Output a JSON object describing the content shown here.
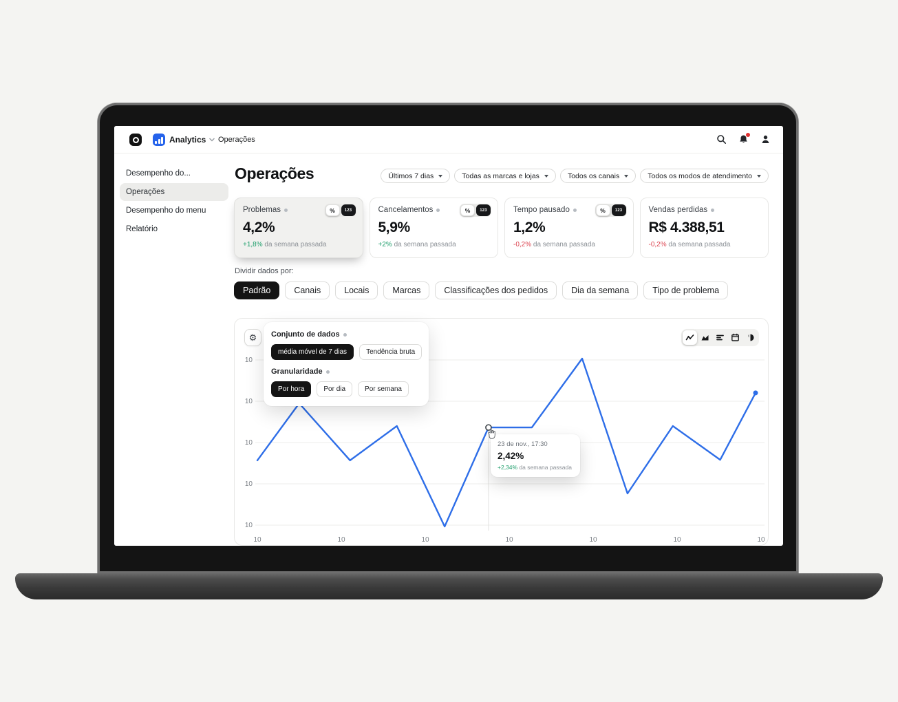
{
  "topbar": {
    "brand": "Analytics",
    "breadcrumb": "Operações"
  },
  "sidebar": {
    "items": [
      {
        "label": "Desempenho do...",
        "selected": false
      },
      {
        "label": "Operações",
        "selected": true
      },
      {
        "label": "Desempenho do menu",
        "selected": false
      },
      {
        "label": "Relatório",
        "selected": false
      }
    ]
  },
  "header": {
    "title": "Operações",
    "filters": [
      {
        "label": "Últimos 7 dias"
      },
      {
        "label": "Todas as marcas e lojas"
      },
      {
        "label": "Todos os canais"
      },
      {
        "label": "Todos os modos de atendimento"
      }
    ]
  },
  "kpi_toggle": {
    "percent_label": "%",
    "number_label": "123"
  },
  "kpis": [
    {
      "label": "Problemas",
      "value": "4,2%",
      "delta": "+1,8%",
      "delta_suffix": " da semana passada"
    },
    {
      "label": "Cancelamentos",
      "value": "5,9%",
      "delta": "+2%",
      "delta_suffix": " da semana passada"
    },
    {
      "label": "Tempo pausado",
      "value": "1,2%",
      "delta": "-0,2%",
      "delta_suffix": " da semana passada"
    },
    {
      "label": "Vendas perdidas",
      "value": "R$ 4.388,51",
      "delta": "-0,2%",
      "delta_suffix": " da semana passada"
    }
  ],
  "split": {
    "label": "Dividir dados por:",
    "chips": [
      {
        "label": "Padrão",
        "selected": true
      },
      {
        "label": "Canais",
        "selected": false
      },
      {
        "label": "Locais",
        "selected": false
      },
      {
        "label": "Marcas",
        "selected": false
      },
      {
        "label": "Classificações dos pedidos",
        "selected": false
      },
      {
        "label": "Dia da semana",
        "selected": false
      },
      {
        "label": "Tipo de problema",
        "selected": false
      }
    ]
  },
  "chart_panel": {
    "gear_glyph": "⚙",
    "popover": {
      "dataset_label": "Conjunto de dados",
      "dataset_options": [
        {
          "label": "média móvel de 7 dias",
          "selected": true
        },
        {
          "label": "Tendência bruta",
          "selected": false
        }
      ],
      "granularity_label": "Granularidade",
      "granularity_options": [
        {
          "label": "Por hora",
          "selected": true
        },
        {
          "label": "Por dia",
          "selected": false
        },
        {
          "label": "Por semana",
          "selected": false
        }
      ]
    },
    "toolbar_icons": [
      "line-chart",
      "area-chart",
      "bar-chart",
      "calendar",
      "pie-chart"
    ],
    "tooltip": {
      "date": "23 de nov., 17:30",
      "value": "2,42%",
      "delta": "+2,34%",
      "delta_suffix": " da semana passada"
    }
  },
  "chart_data": {
    "type": "line",
    "title": "",
    "xlabel": "",
    "ylabel": "",
    "grid": true,
    "legend": "none",
    "x_tick_labels": [
      "10",
      "10",
      "10",
      "10",
      "10",
      "10",
      "10"
    ],
    "y_tick_labels": [
      "10",
      "10",
      "10",
      "10",
      "10"
    ],
    "series": [
      {
        "name": "média móvel de 7 dias",
        "color": "#2e6ee8",
        "points": [
          [
            0.0,
            0.404
          ],
          [
            0.084,
            0.711
          ],
          [
            0.186,
            0.404
          ],
          [
            0.28,
            0.589
          ],
          [
            0.376,
            0.048
          ],
          [
            0.464,
            0.581
          ],
          [
            0.551,
            0.581
          ],
          [
            0.652,
            0.952
          ],
          [
            0.743,
            0.226
          ],
          [
            0.834,
            0.589
          ],
          [
            0.929,
            0.407
          ],
          [
            1.0,
            0.767
          ]
        ]
      }
    ],
    "highlight": {
      "index": 5,
      "value_label": "2,42%"
    },
    "end_marker_index": 11
  },
  "colors": {
    "accent_blue": "#2e6ee8",
    "positive_green": "#1e9e6b",
    "negative_red": "#dc4450",
    "chip_black": "#141414",
    "page_bg": "#f4f4f2"
  }
}
